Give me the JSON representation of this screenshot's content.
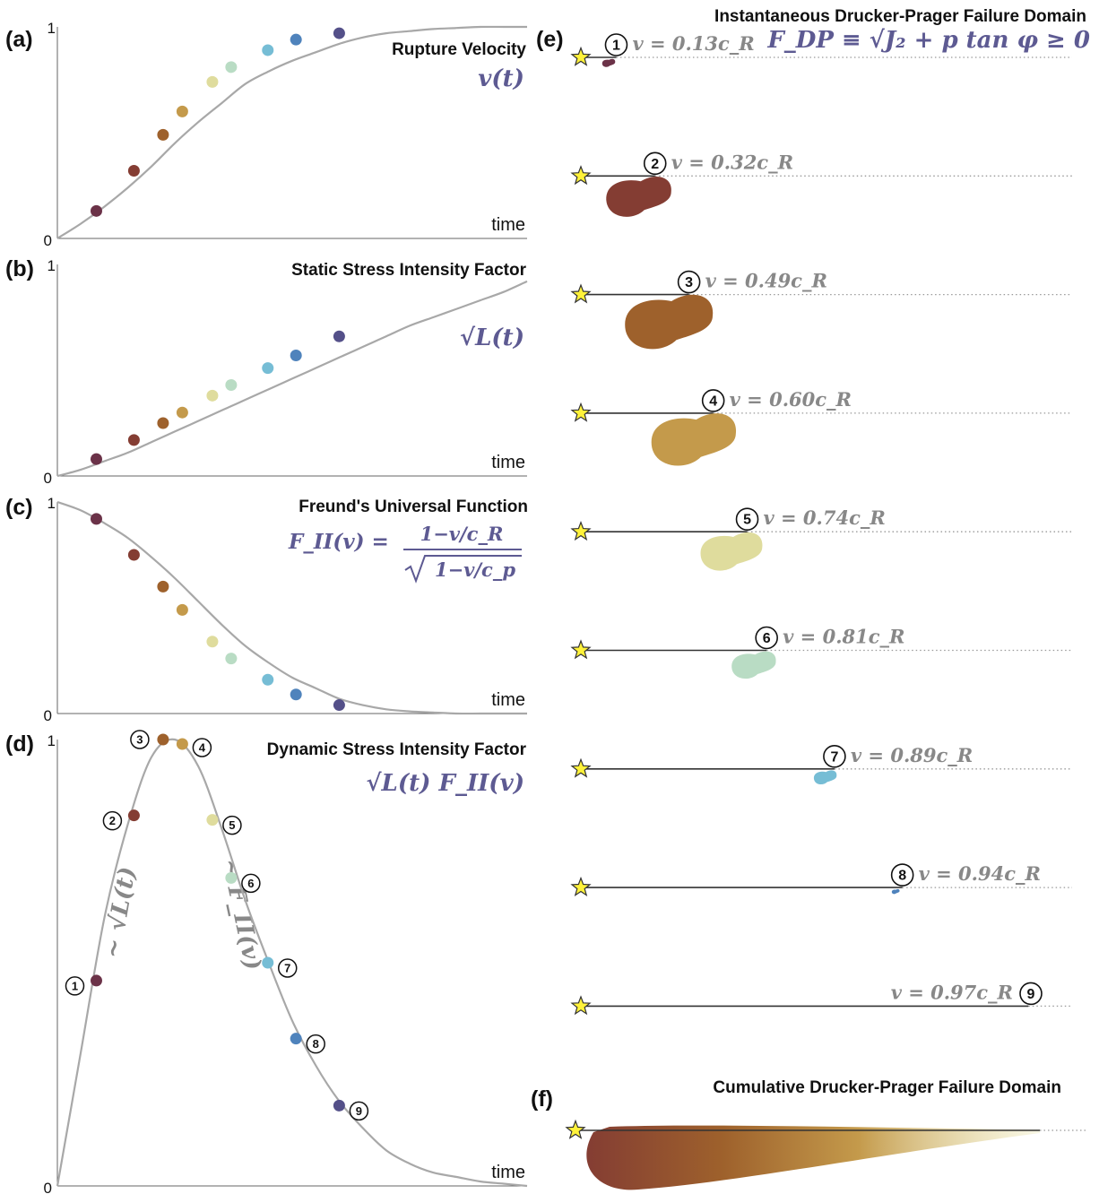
{
  "colors": [
    "#6b3248",
    "#843d33",
    "#9e612c",
    "#c49a4b",
    "#dfdc9d",
    "#b9dcc4",
    "#76bdd5",
    "#4f83bc",
    "#545089"
  ],
  "curve_color": "#a8a8a8",
  "math_color": "#5d5a92",
  "chart_data": [
    {
      "panel": "(a)",
      "type": "line",
      "title": "Rupture Velocity",
      "formula": "v(t)",
      "xlabel": "time",
      "ylim": [
        0,
        1
      ],
      "ytick_labels": [
        "0",
        "1"
      ],
      "x": [
        0.0,
        0.05,
        0.1,
        0.15,
        0.2,
        0.25,
        0.3,
        0.35,
        0.4,
        0.45,
        0.5,
        0.55,
        0.6,
        0.65,
        0.7,
        0.75,
        0.8,
        0.85,
        0.9,
        0.95,
        1.0
      ],
      "y": [
        0.0,
        0.07,
        0.15,
        0.24,
        0.34,
        0.45,
        0.55,
        0.64,
        0.73,
        0.79,
        0.84,
        0.88,
        0.92,
        0.95,
        0.97,
        0.98,
        0.99,
        0.995,
        1.0,
        1.0,
        1.0
      ],
      "points": [
        {
          "x": 0.083,
          "y": 0.13
        },
        {
          "x": 0.163,
          "y": 0.32
        },
        {
          "x": 0.225,
          "y": 0.49
        },
        {
          "x": 0.266,
          "y": 0.6
        },
        {
          "x": 0.33,
          "y": 0.74
        },
        {
          "x": 0.37,
          "y": 0.81
        },
        {
          "x": 0.448,
          "y": 0.89
        },
        {
          "x": 0.508,
          "y": 0.94
        },
        {
          "x": 0.6,
          "y": 0.97
        }
      ]
    },
    {
      "panel": "(b)",
      "type": "line",
      "title": "Static Stress Intensity Factor",
      "formula": "√L(t)",
      "xlabel": "time",
      "ylim": [
        0,
        1
      ],
      "ytick_labels": [
        "0",
        "1"
      ],
      "x": [
        0.0,
        0.05,
        0.1,
        0.15,
        0.2,
        0.25,
        0.3,
        0.35,
        0.4,
        0.45,
        0.5,
        0.55,
        0.6,
        0.65,
        0.7,
        0.75,
        0.8,
        0.85,
        0.9,
        0.95,
        1.0
      ],
      "y": [
        0.0,
        0.03,
        0.07,
        0.11,
        0.16,
        0.21,
        0.26,
        0.31,
        0.36,
        0.41,
        0.46,
        0.51,
        0.56,
        0.61,
        0.66,
        0.71,
        0.75,
        0.79,
        0.83,
        0.87,
        0.92
      ],
      "points": [
        {
          "x": 0.083,
          "y": 0.08
        },
        {
          "x": 0.163,
          "y": 0.17
        },
        {
          "x": 0.225,
          "y": 0.25
        },
        {
          "x": 0.266,
          "y": 0.3
        },
        {
          "x": 0.33,
          "y": 0.38
        },
        {
          "x": 0.37,
          "y": 0.43
        },
        {
          "x": 0.448,
          "y": 0.51
        },
        {
          "x": 0.508,
          "y": 0.57
        },
        {
          "x": 0.6,
          "y": 0.66
        }
      ]
    },
    {
      "panel": "(c)",
      "type": "line",
      "title": "Freund's Universal Function",
      "formula_lhs": "F_II(v) =",
      "formula_num": "1−v/c_R",
      "formula_den": "1−v/c_p",
      "xlabel": "time",
      "ylim": [
        0,
        1
      ],
      "ytick_labels": [
        "0",
        "1"
      ],
      "x": [
        0.0,
        0.05,
        0.1,
        0.15,
        0.2,
        0.25,
        0.3,
        0.35,
        0.4,
        0.45,
        0.5,
        0.55,
        0.6,
        0.65,
        0.7,
        0.75,
        0.8,
        0.85,
        0.9,
        0.95,
        1.0
      ],
      "y": [
        1.0,
        0.96,
        0.9,
        0.83,
        0.74,
        0.64,
        0.53,
        0.42,
        0.32,
        0.24,
        0.17,
        0.12,
        0.07,
        0.04,
        0.02,
        0.01,
        0.005,
        0.0,
        0.0,
        0.0,
        0.0
      ],
      "points": [
        {
          "x": 0.083,
          "y": 0.92
        },
        {
          "x": 0.163,
          "y": 0.75
        },
        {
          "x": 0.225,
          "y": 0.6
        },
        {
          "x": 0.266,
          "y": 0.49
        },
        {
          "x": 0.33,
          "y": 0.34
        },
        {
          "x": 0.37,
          "y": 0.26
        },
        {
          "x": 0.448,
          "y": 0.16
        },
        {
          "x": 0.508,
          "y": 0.09
        },
        {
          "x": 0.6,
          "y": 0.04
        }
      ]
    },
    {
      "panel": "(d)",
      "type": "line",
      "title": "Dynamic Stress Intensity Factor",
      "formula": "√L(t) F_II(v)",
      "xlabel": "time",
      "ylim": [
        0,
        1
      ],
      "ytick_labels": [
        "0",
        "1"
      ],
      "annotations": [
        "~ √L(t)",
        "~ F_II(v)"
      ],
      "x": [
        0.0,
        0.05,
        0.1,
        0.15,
        0.2,
        0.25,
        0.3,
        0.35,
        0.4,
        0.45,
        0.5,
        0.55,
        0.6,
        0.65,
        0.7,
        0.75,
        0.8,
        0.85,
        0.9,
        0.95,
        1.0
      ],
      "y": [
        0.0,
        0.3,
        0.6,
        0.81,
        0.96,
        1.0,
        0.94,
        0.8,
        0.64,
        0.5,
        0.37,
        0.27,
        0.19,
        0.13,
        0.08,
        0.05,
        0.03,
        0.02,
        0.01,
        0.005,
        0.0
      ],
      "points": [
        {
          "x": 0.083,
          "y": 0.46,
          "label": "1"
        },
        {
          "x": 0.163,
          "y": 0.83,
          "label": "2"
        },
        {
          "x": 0.225,
          "y": 1.0,
          "label": "3"
        },
        {
          "x": 0.266,
          "y": 0.99,
          "label": "4"
        },
        {
          "x": 0.33,
          "y": 0.82,
          "label": "5"
        },
        {
          "x": 0.37,
          "y": 0.69,
          "label": "6"
        },
        {
          "x": 0.448,
          "y": 0.5,
          "label": "7"
        },
        {
          "x": 0.508,
          "y": 0.33,
          "label": "8"
        },
        {
          "x": 0.6,
          "y": 0.18,
          "label": "9"
        }
      ]
    },
    {
      "panel": "(e)",
      "type": "other",
      "title": "Instantaneous Drucker-Prager Failure Domain",
      "formula": "F_DP ≡ √J₂ + p tan φ ≥ 0",
      "rupture_tip_fraction": [
        0.06,
        0.14,
        0.21,
        0.26,
        0.33,
        0.37,
        0.51,
        0.65,
        0.91
      ],
      "domain_scale": [
        0.2,
        1.0,
        1.35,
        1.3,
        0.95,
        0.68,
        0.35,
        0.12,
        0.0
      ],
      "snapshots": [
        {
          "label": "1",
          "v": "v = 0.13c_R"
        },
        {
          "label": "2",
          "v": "v = 0.32c_R"
        },
        {
          "label": "3",
          "v": "v = 0.49c_R"
        },
        {
          "label": "4",
          "v": "v = 0.60c_R"
        },
        {
          "label": "5",
          "v": "v = 0.74c_R"
        },
        {
          "label": "6",
          "v": "v = 0.81c_R"
        },
        {
          "label": "7",
          "v": "v = 0.89c_R"
        },
        {
          "label": "8",
          "v": "v = 0.94c_R"
        },
        {
          "label": "9",
          "v": "v = 0.97c_R"
        }
      ]
    },
    {
      "panel": "(f)",
      "type": "other",
      "title": "Cumulative Drucker-Prager Failure Domain",
      "colors": [
        "#843d33",
        "#9e612c",
        "#c49a4b",
        "#e8e3a6"
      ]
    }
  ]
}
